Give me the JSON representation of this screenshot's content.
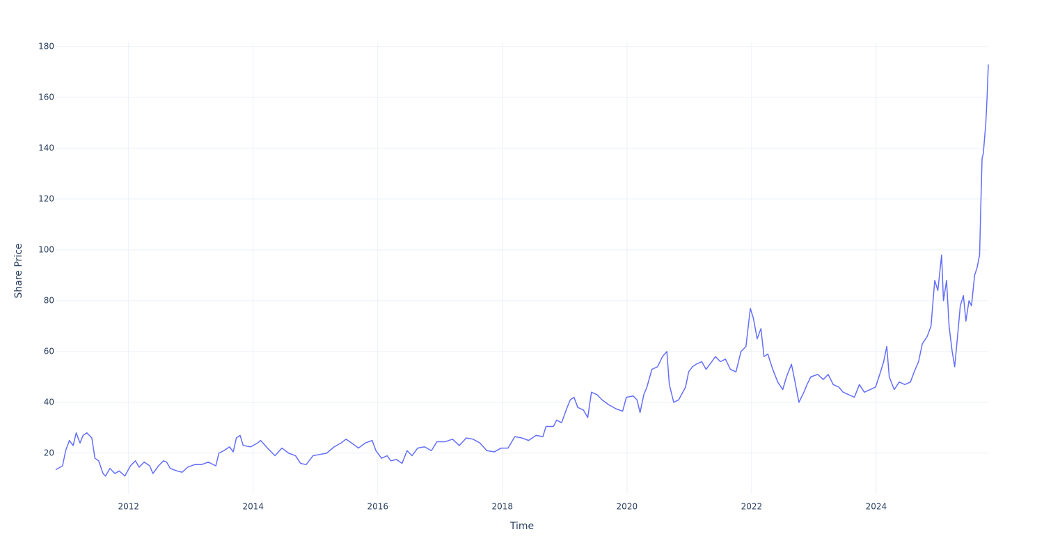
{
  "chart_data": {
    "type": "line",
    "x_label": "Time",
    "y_label": "Share Price",
    "x": [
      2010.83,
      2010.94,
      2010.99,
      2011.05,
      2011.11,
      2011.16,
      2011.22,
      2011.27,
      2011.33,
      2011.41,
      2011.46,
      2011.52,
      2011.59,
      2011.63,
      2011.7,
      2011.78,
      2011.85,
      2011.94,
      2012.03,
      2012.11,
      2012.17,
      2012.25,
      2012.34,
      2012.39,
      2012.48,
      2012.56,
      2012.61,
      2012.67,
      2012.78,
      2012.86,
      2012.95,
      2013.06,
      2013.17,
      2013.28,
      2013.4,
      2013.45,
      2013.53,
      2013.62,
      2013.68,
      2013.73,
      2013.79,
      2013.84,
      2013.96,
      2014.07,
      2014.12,
      2014.23,
      2014.35,
      2014.46,
      2014.57,
      2014.68,
      2014.76,
      2014.85,
      2014.96,
      2015.07,
      2015.18,
      2015.3,
      2015.41,
      2015.49,
      2015.58,
      2015.69,
      2015.8,
      2015.91,
      2015.97,
      2016.06,
      2016.15,
      2016.21,
      2016.3,
      2016.39,
      2016.47,
      2016.55,
      2016.64,
      2016.75,
      2016.86,
      2016.95,
      2017.08,
      2017.2,
      2017.31,
      2017.42,
      2017.53,
      2017.64,
      2017.75,
      2017.87,
      2017.98,
      2018.09,
      2018.2,
      2018.31,
      2018.42,
      2018.54,
      2018.65,
      2018.7,
      2018.82,
      2018.87,
      2018.95,
      2019.04,
      2019.09,
      2019.15,
      2019.21,
      2019.3,
      2019.37,
      2019.43,
      2019.52,
      2019.6,
      2019.71,
      2019.82,
      2019.93,
      2019.99,
      2020.1,
      2020.16,
      2020.21,
      2020.27,
      2020.32,
      2020.4,
      2020.49,
      2020.57,
      2020.64,
      2020.68,
      2020.75,
      2020.83,
      2020.94,
      2020.99,
      2021.05,
      2021.11,
      2021.2,
      2021.27,
      2021.33,
      2021.42,
      2021.5,
      2021.58,
      2021.66,
      2021.75,
      2021.83,
      2021.91,
      2021.98,
      2022.03,
      2022.09,
      2022.15,
      2022.2,
      2022.26,
      2022.34,
      2022.42,
      2022.5,
      2022.56,
      2022.64,
      2022.69,
      2022.76,
      2022.84,
      2022.89,
      2022.95,
      2023.06,
      2023.15,
      2023.23,
      2023.31,
      2023.4,
      2023.47,
      2023.56,
      2023.65,
      2023.73,
      2023.81,
      2023.9,
      2023.99,
      2024.07,
      2024.12,
      2024.17,
      2024.21,
      2024.29,
      2024.37,
      2024.46,
      2024.55,
      2024.61,
      2024.68,
      2024.74,
      2024.82,
      2024.88,
      2024.94,
      2024.99,
      2025.05,
      2025.08,
      2025.13,
      2025.17,
      2025.22,
      2025.26,
      2025.31,
      2025.35,
      2025.4,
      2025.44,
      2025.49,
      2025.53,
      2025.58,
      2025.62,
      2025.66,
      2025.68,
      2025.7,
      2025.72,
      2025.76,
      2025.78,
      2025.8
    ],
    "series": [
      {
        "color": "#636efa",
        "values": [
          13.5,
          15,
          21,
          25,
          23,
          28,
          24,
          27,
          28,
          26,
          18,
          17,
          12,
          11,
          14,
          12,
          13,
          11,
          15,
          17,
          14.5,
          16.5,
          15,
          12,
          15,
          17,
          16.5,
          14,
          13,
          12.5,
          14.5,
          15.5,
          15.5,
          16.5,
          15,
          20,
          21,
          22.5,
          20.5,
          26,
          27,
          23,
          22.5,
          24,
          25,
          22,
          19,
          22,
          20,
          19,
          16,
          15.5,
          19,
          19.5,
          20,
          22.5,
          24,
          25.5,
          24,
          22,
          24,
          25,
          21,
          18,
          19,
          17,
          17.5,
          16,
          21,
          19,
          22,
          22.5,
          21,
          24.5,
          24.5,
          25.5,
          23,
          26,
          25.5,
          24,
          21,
          20.5,
          22,
          22,
          26.5,
          26,
          25,
          27,
          26.5,
          30.5,
          30.5,
          33,
          32,
          38,
          41,
          42,
          38,
          37,
          34,
          44,
          43,
          41,
          39,
          37.5,
          36.5,
          42,
          42.5,
          41,
          36,
          43,
          46,
          53,
          54,
          58,
          60,
          47,
          40,
          41,
          46,
          52,
          54,
          55,
          56,
          53,
          55,
          58,
          56,
          57,
          53,
          52,
          60,
          62,
          77,
          73,
          65,
          69,
          58,
          59,
          53,
          48,
          45,
          50,
          55,
          49,
          40,
          44,
          47,
          50,
          51,
          49,
          51,
          47,
          46,
          44,
          43,
          42,
          47,
          44,
          45,
          46,
          52,
          56,
          62,
          50,
          45,
          48,
          47,
          48,
          52,
          56,
          63,
          66,
          70,
          88,
          84,
          98,
          80,
          88,
          70,
          60,
          54,
          67,
          78,
          82,
          72,
          80,
          78,
          90,
          93,
          98,
          118,
          136,
          138,
          150,
          160,
          173
        ]
      }
    ],
    "xlim": [
      2010.83,
      2025.8
    ],
    "xticks": [
      2012,
      2014,
      2016,
      2018,
      2020,
      2022,
      2024
    ],
    "ylim": [
      3.8,
      181.9
    ],
    "yticks": [
      20,
      40,
      60,
      80,
      100,
      120,
      140,
      160,
      180
    ],
    "grid": true
  }
}
